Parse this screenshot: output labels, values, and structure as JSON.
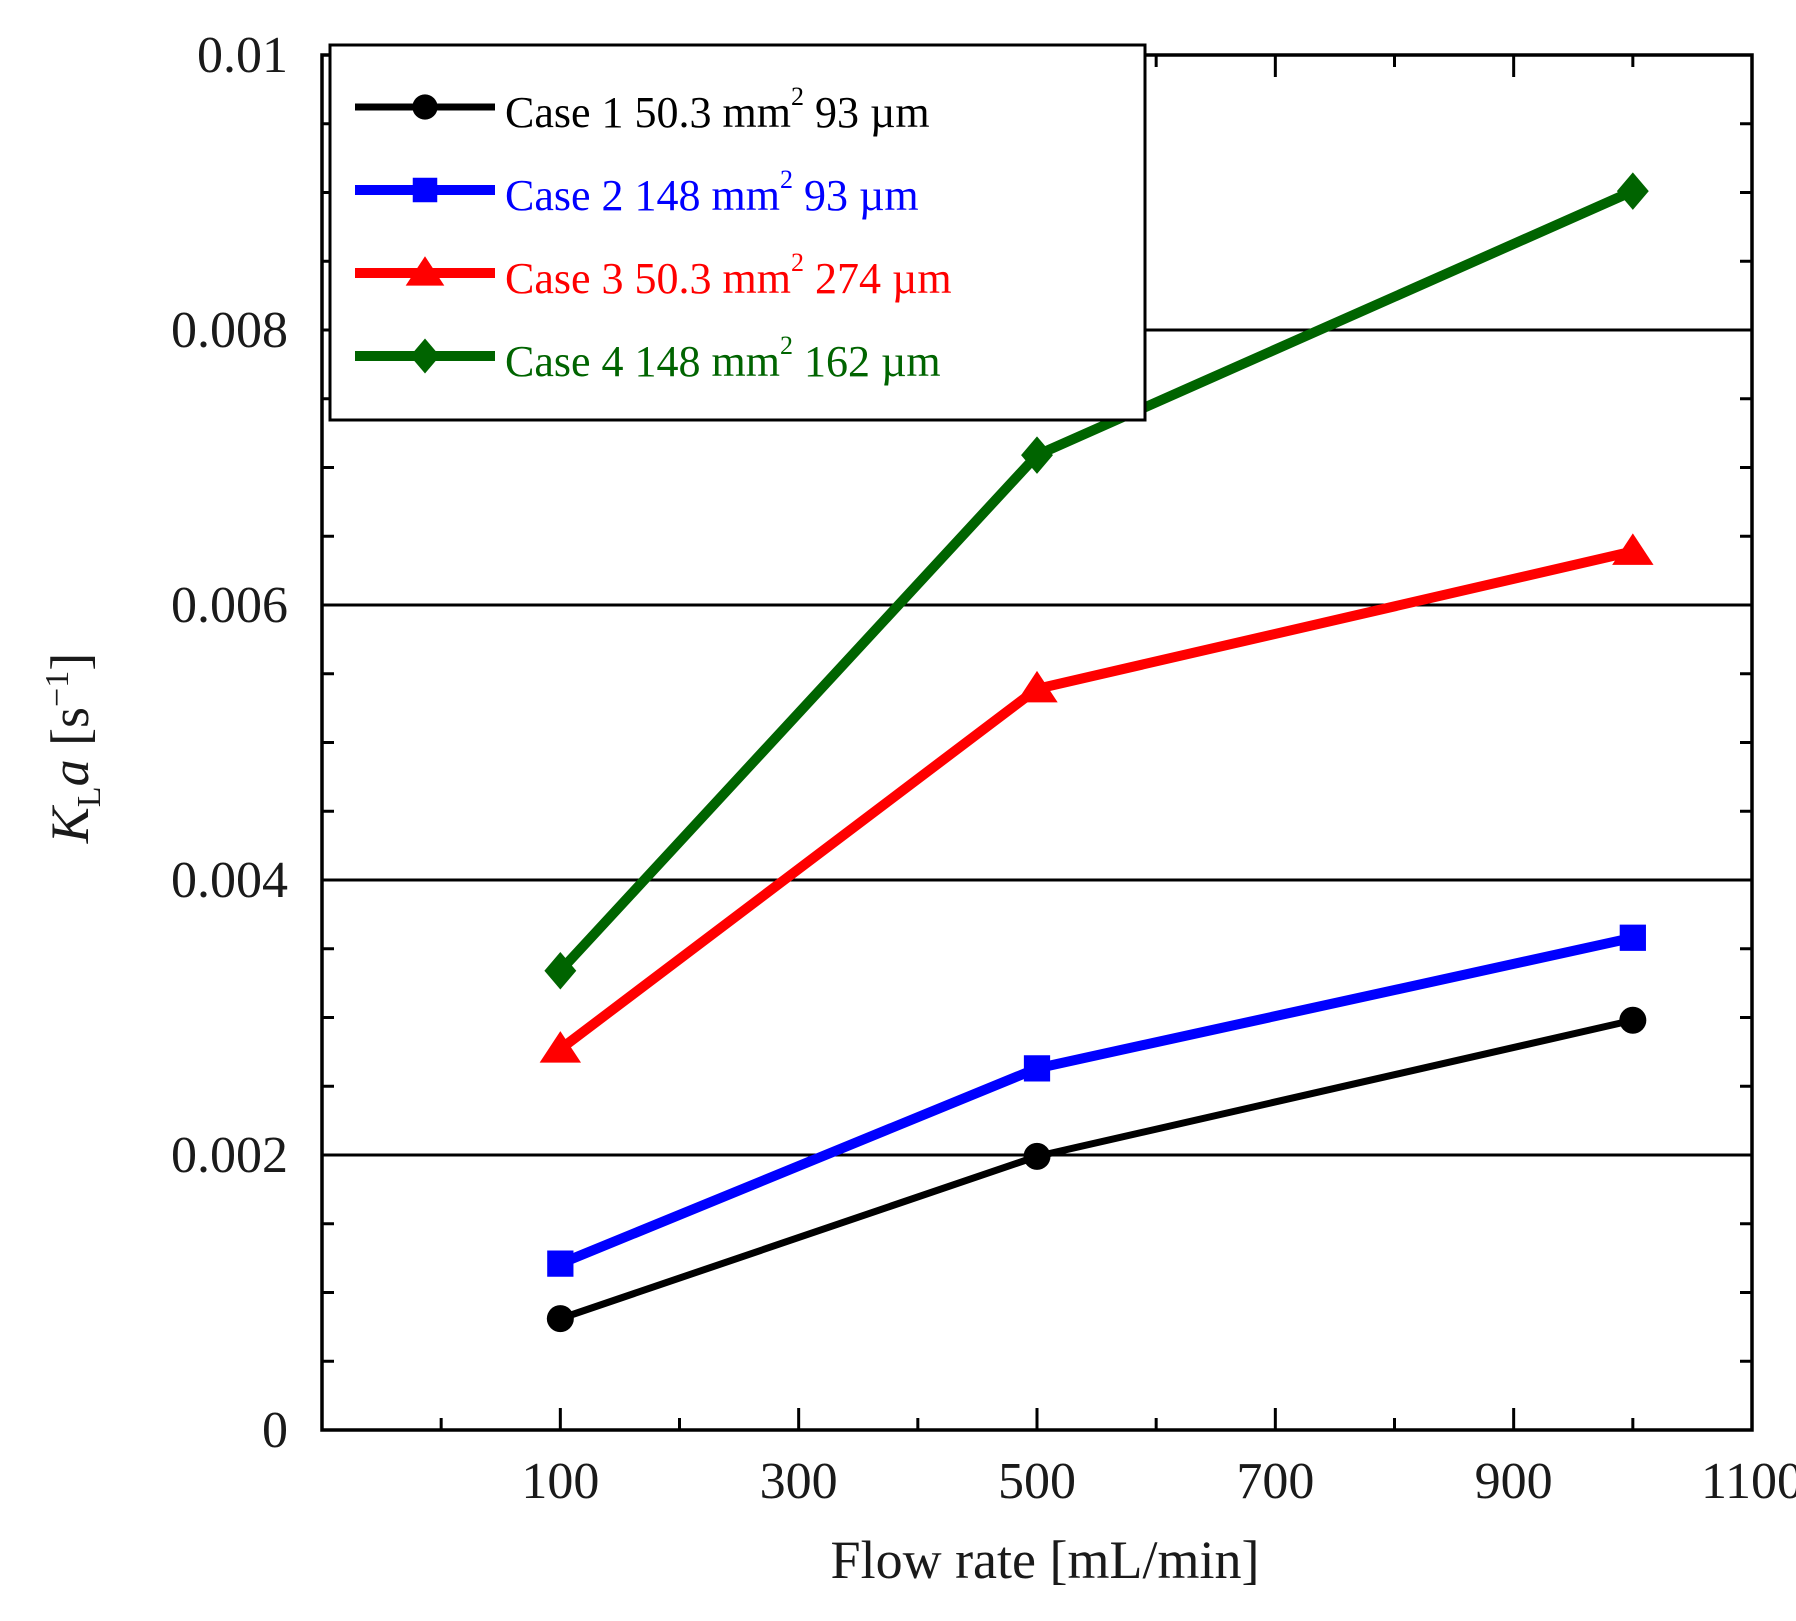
{
  "chart_data": {
    "type": "line",
    "xlabel": "Flow rate [mL/min]",
    "ylabel_main": "K",
    "ylabel_sub": "L",
    "ylabel_var": "a",
    "ylabel_unit_open": " [s",
    "ylabel_unit_exp": "−1",
    "ylabel_unit_close": "]",
    "x_range": [
      -100,
      1100
    ],
    "y_range": [
      0,
      0.01
    ],
    "x_ticks": [
      100,
      300,
      500,
      700,
      900,
      1100
    ],
    "x_tick_labels": [
      "100",
      "300",
      "500",
      "700",
      "900",
      "1100"
    ],
    "y_ticks": [
      0,
      0.002,
      0.004,
      0.006,
      0.008,
      0.01
    ],
    "y_tick_labels": [
      "0",
      "0.002",
      "0.004",
      "0.006",
      "0.008",
      "0.01"
    ],
    "gridlines_y": [
      0.002,
      0.004,
      0.006,
      0.008
    ],
    "legend_position": "top-left",
    "series": [
      {
        "name": "Case 1",
        "area": "50.3 mm",
        "area_exp": "2",
        "pore": "93 µm",
        "color": "#000000",
        "marker": "circle",
        "x": [
          100,
          500,
          1000
        ],
        "y": [
          0.00081,
          0.00199,
          0.00298
        ]
      },
      {
        "name": "Case 2",
        "area": "148  mm",
        "area_exp": "2",
        "pore": "93 µm",
        "color": "#0000ff",
        "marker": "square",
        "x": [
          100,
          500,
          1000
        ],
        "y": [
          0.00121,
          0.00263,
          0.00358
        ]
      },
      {
        "name": "Case 3",
        "area": "50.3 mm",
        "area_exp": "2",
        "pore": "274 µm",
        "color": "#ff0000",
        "marker": "triangle",
        "x": [
          100,
          500,
          1000
        ],
        "y": [
          0.00277,
          0.00539,
          0.00639
        ]
      },
      {
        "name": "Case 4",
        "area": "148  mm",
        "area_exp": "2",
        "pore": "162 µm",
        "color": "#006400",
        "marker": "diamond",
        "x": [
          100,
          500,
          1000
        ],
        "y": [
          0.00334,
          0.00709,
          0.00901
        ]
      }
    ]
  }
}
